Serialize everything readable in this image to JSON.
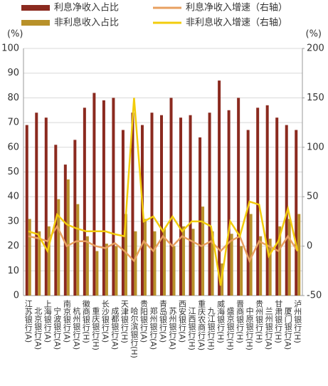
{
  "chart_data": {
    "type": "bar-line",
    "y_label": "(%)",
    "y2_label": "(%)",
    "categories": [
      "江苏银行(A)",
      "北京银行(A)",
      "上海银行(A)",
      "宁波银行(A)",
      "南京银行(A)",
      "杭州银行(A)",
      "徽商银行(H)",
      "重庆银行(H)",
      "长沙银行(A)",
      "成都银行(A)",
      "天津银行(H)",
      "哈尔滨银行(H)",
      "贵阳银行(A)",
      "郑州银行(A)",
      "青岛银行(A)",
      "苏州银行(A)",
      "西安银行(A)",
      "江西银行(H)",
      "重庆农商行(A)",
      "九江银行(H)",
      "威海银行(H)",
      "盛京银行(H)",
      "晋商银行(H)",
      "中原银行(H)",
      "贵州银行(H)",
      "兰州银行(A)",
      "甘肃银行(H)",
      "厦门银行(A)",
      "泸州银行(H)"
    ],
    "series": [
      {
        "name": "利息净收入占比",
        "type": "bar",
        "color": "#8b2a1f",
        "values": [
          69,
          74,
          72,
          61,
          53,
          63,
          76,
          82,
          79,
          80,
          67,
          74,
          69,
          74,
          73,
          80,
          72,
          73,
          64,
          74,
          87,
          75,
          80,
          67,
          76,
          77,
          72,
          69,
          67
        ]
      },
      {
        "name": "非利息收入占比",
        "type": "bar",
        "color": "#b8912a",
        "values": [
          31,
          26,
          28,
          39,
          47,
          37,
          24,
          18,
          21,
          20,
          33,
          26,
          31,
          26,
          27,
          20,
          28,
          27,
          36,
          26,
          13,
          25,
          20,
          33,
          24,
          23,
          28,
          31,
          33
        ]
      },
      {
        "name": "利息净收入增速（右轴）",
        "type": "line",
        "axis": "y2",
        "color": "#e8a060",
        "values": [
          10,
          8,
          5,
          20,
          0,
          5,
          5,
          0,
          -2,
          3,
          -5,
          -15,
          5,
          -5,
          10,
          0,
          10,
          5,
          0,
          5,
          -5,
          5,
          10,
          -15,
          5,
          0,
          -5,
          10,
          -5
        ]
      },
      {
        "name": "非利息收入增速（右轴）",
        "type": "line",
        "axis": "y2",
        "color": "#f2cc0c",
        "values": [
          15,
          12,
          -5,
          32,
          22,
          18,
          15,
          15,
          15,
          12,
          10,
          150,
          25,
          30,
          15,
          30,
          15,
          25,
          25,
          20,
          -40,
          25,
          10,
          45,
          42,
          -10,
          5,
          38,
          -5
        ]
      }
    ],
    "ylim": [
      0,
      100
    ],
    "yticks": [
      0,
      10,
      20,
      30,
      40,
      50,
      60,
      70,
      80,
      90,
      100
    ],
    "y2lim": [
      -50,
      200
    ],
    "y2ticks": [
      -50,
      0,
      50,
      100,
      150,
      200
    ],
    "grid": true
  }
}
